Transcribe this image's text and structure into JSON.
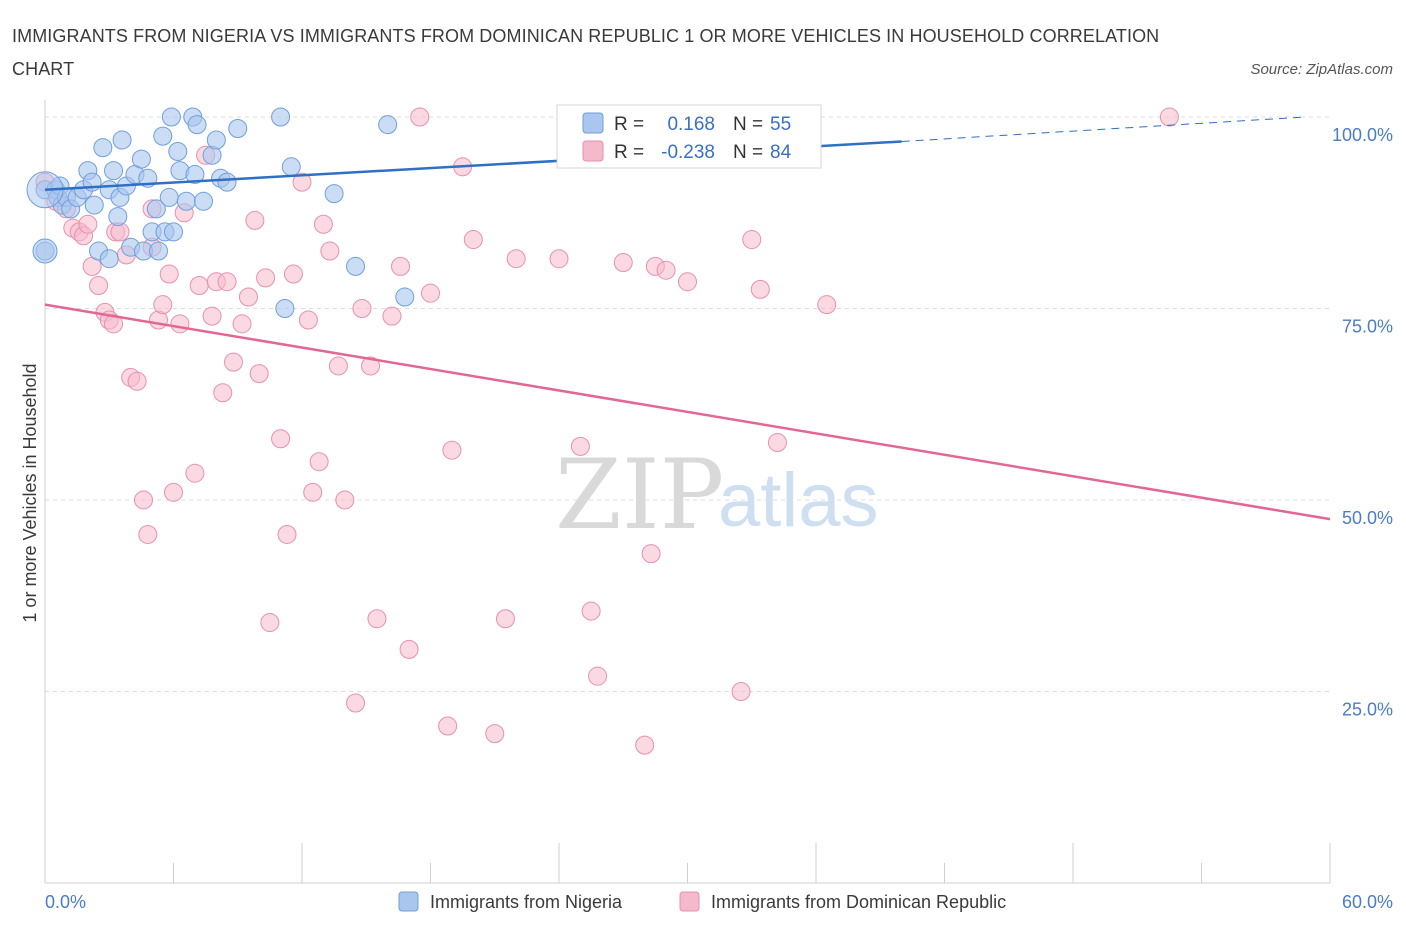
{
  "header": {
    "title": "IMMIGRANTS FROM NIGERIA VS IMMIGRANTS FROM DOMINICAN REPUBLIC 1 OR MORE VEHICLES IN HOUSEHOLD CORRELATION CHART",
    "source": "Source: ZipAtlas.com"
  },
  "watermark": {
    "zip": "ZIP",
    "atlas": "atlas"
  },
  "stats": {
    "r_label": "R =",
    "n_label": "N =",
    "nigeria": {
      "r": "0.168",
      "n": "55"
    },
    "dominican": {
      "r": "-0.238",
      "n": "84"
    }
  },
  "colors": {
    "nigeria_fill": "#a9c6ef",
    "nigeria_stroke": "#6f9fdc",
    "nigeria_line": "#2f6fc6",
    "dominican_fill": "#f5b9cc",
    "dominican_stroke": "#e890ad",
    "dominican_line": "#e36693",
    "tick_text": "#4a7cc8"
  },
  "chart_data": {
    "type": "scatter",
    "title": "IMMIGRANTS FROM NIGERIA VS IMMIGRANTS FROM DOMINICAN REPUBLIC 1 OR MORE VEHICLES IN HOUSEHOLD CORRELATION CHART",
    "ylabel": "1 or more Vehicles in Household",
    "xlabel": "",
    "xlim": [
      0,
      60
    ],
    "ylim": [
      0,
      100
    ],
    "x_tick_labels": [
      "0.0%",
      "60.0%"
    ],
    "y_tick_labels": [
      "100.0%",
      "75.0%",
      "50.0%",
      "25.0%"
    ],
    "y_ticks": [
      100,
      75,
      50,
      25
    ],
    "grid": true,
    "legend_position": "bottom",
    "series": [
      {
        "name": "Immigrants from Nigeria",
        "trend": {
          "x": [
            0,
            40
          ],
          "y": [
            90.5,
            96.8
          ],
          "dashed_to": [
            60,
            100.0
          ]
        },
        "points": [
          [
            0.0,
            90.5
          ],
          [
            0.0,
            82.5
          ],
          [
            0.5,
            90.5
          ],
          [
            0.6,
            89.5
          ],
          [
            0.7,
            91.0
          ],
          [
            0.8,
            88.5
          ],
          [
            1.0,
            89.5
          ],
          [
            1.2,
            88.0
          ],
          [
            1.5,
            89.5
          ],
          [
            1.8,
            90.5
          ],
          [
            2.0,
            93.0
          ],
          [
            2.2,
            91.5
          ],
          [
            2.3,
            88.5
          ],
          [
            2.5,
            82.5
          ],
          [
            2.7,
            96.0
          ],
          [
            3.0,
            81.5
          ],
          [
            3.0,
            90.5
          ],
          [
            3.2,
            93.0
          ],
          [
            3.4,
            87.0
          ],
          [
            3.5,
            89.5
          ],
          [
            3.6,
            97.0
          ],
          [
            3.8,
            91.0
          ],
          [
            4.0,
            83.0
          ],
          [
            4.2,
            92.5
          ],
          [
            4.5,
            94.5
          ],
          [
            4.6,
            82.5
          ],
          [
            4.8,
            92.0
          ],
          [
            5.0,
            85.0
          ],
          [
            5.2,
            88.0
          ],
          [
            5.3,
            82.5
          ],
          [
            5.5,
            97.5
          ],
          [
            5.6,
            85.0
          ],
          [
            5.8,
            89.5
          ],
          [
            5.9,
            100.0
          ],
          [
            6.0,
            85.0
          ],
          [
            6.2,
            95.5
          ],
          [
            6.3,
            93.0
          ],
          [
            6.6,
            89.0
          ],
          [
            6.9,
            100.0
          ],
          [
            7.0,
            92.5
          ],
          [
            7.1,
            99.0
          ],
          [
            7.4,
            89.0
          ],
          [
            7.8,
            95.0
          ],
          [
            8.0,
            97.0
          ],
          [
            8.2,
            92.0
          ],
          [
            8.5,
            91.5
          ],
          [
            9.0,
            98.5
          ],
          [
            11.0,
            100.0
          ],
          [
            11.2,
            75.0
          ],
          [
            13.5,
            90.0
          ],
          [
            14.5,
            80.5
          ],
          [
            16.0,
            99.0
          ],
          [
            16.8,
            76.5
          ],
          [
            35.5,
            100.0
          ],
          [
            11.5,
            93.5
          ]
        ]
      },
      {
        "name": "Immigrants from Dominican Republic",
        "trend": {
          "x": [
            0,
            60
          ],
          "y": [
            75.5,
            47.5
          ]
        },
        "points": [
          [
            0.0,
            91.5
          ],
          [
            0.5,
            89.0
          ],
          [
            1.0,
            88.0
          ],
          [
            1.3,
            85.5
          ],
          [
            1.6,
            85.0
          ],
          [
            1.8,
            84.5
          ],
          [
            2.0,
            86.0
          ],
          [
            2.2,
            80.5
          ],
          [
            2.5,
            78.0
          ],
          [
            2.8,
            74.5
          ],
          [
            3.0,
            73.5
          ],
          [
            3.3,
            85.0
          ],
          [
            3.5,
            85.0
          ],
          [
            3.8,
            82.0
          ],
          [
            4.0,
            66.0
          ],
          [
            4.3,
            65.5
          ],
          [
            4.6,
            50.0
          ],
          [
            4.8,
            45.5
          ],
          [
            5.0,
            83.0
          ],
          [
            5.3,
            73.5
          ],
          [
            5.5,
            75.5
          ],
          [
            5.8,
            79.5
          ],
          [
            6.0,
            51.0
          ],
          [
            6.3,
            73.0
          ],
          [
            6.5,
            87.5
          ],
          [
            7.0,
            53.5
          ],
          [
            7.2,
            78.0
          ],
          [
            7.5,
            95.0
          ],
          [
            7.8,
            74.0
          ],
          [
            8.0,
            78.5
          ],
          [
            8.3,
            64.0
          ],
          [
            8.5,
            78.5
          ],
          [
            8.8,
            68.0
          ],
          [
            9.2,
            73.0
          ],
          [
            9.5,
            76.5
          ],
          [
            9.8,
            86.5
          ],
          [
            10.0,
            66.5
          ],
          [
            10.3,
            79.0
          ],
          [
            10.5,
            34.0
          ],
          [
            11.0,
            58.0
          ],
          [
            11.3,
            45.5
          ],
          [
            11.6,
            79.5
          ],
          [
            12.0,
            91.5
          ],
          [
            12.3,
            73.5
          ],
          [
            12.5,
            51.0
          ],
          [
            12.8,
            55.0
          ],
          [
            13.0,
            86.0
          ],
          [
            13.3,
            82.5
          ],
          [
            13.7,
            67.5
          ],
          [
            14.0,
            50.0
          ],
          [
            14.5,
            23.5
          ],
          [
            14.8,
            75.0
          ],
          [
            15.2,
            67.5
          ],
          [
            15.5,
            34.5
          ],
          [
            16.2,
            74.0
          ],
          [
            16.6,
            80.5
          ],
          [
            17.0,
            30.5
          ],
          [
            17.5,
            100.0
          ],
          [
            18.0,
            77.0
          ],
          [
            18.8,
            20.5
          ],
          [
            19.0,
            56.5
          ],
          [
            19.5,
            93.5
          ],
          [
            20.0,
            84.0
          ],
          [
            21.0,
            19.5
          ],
          [
            21.5,
            34.5
          ],
          [
            22.0,
            81.5
          ],
          [
            24.0,
            81.5
          ],
          [
            25.0,
            57.0
          ],
          [
            25.5,
            35.5
          ],
          [
            25.8,
            27.0
          ],
          [
            27.0,
            81.0
          ],
          [
            28.0,
            18.0
          ],
          [
            28.3,
            43.0
          ],
          [
            28.5,
            80.5
          ],
          [
            29.0,
            80.0
          ],
          [
            30.0,
            78.5
          ],
          [
            32.5,
            25.0
          ],
          [
            33.0,
            84.0
          ],
          [
            33.4,
            77.5
          ],
          [
            34.2,
            57.5
          ],
          [
            36.5,
            75.5
          ],
          [
            52.5,
            100.0
          ],
          [
            5.0,
            88.0
          ],
          [
            3.2,
            73.0
          ]
        ]
      }
    ]
  },
  "legend": {
    "items": [
      {
        "label": "Immigrants from Nigeria"
      },
      {
        "label": "Immigrants from Dominican Republic"
      }
    ]
  }
}
